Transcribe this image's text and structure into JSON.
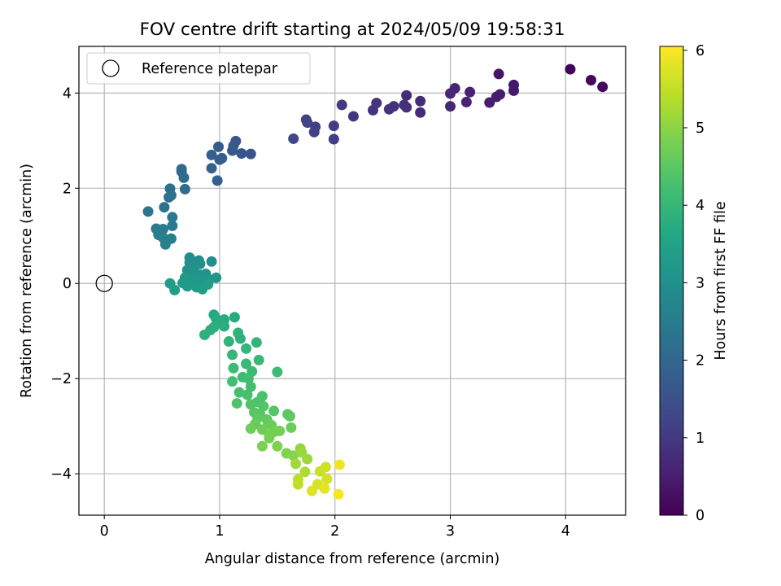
{
  "chart_data": {
    "type": "scatter",
    "title": "FOV centre drift starting at 2024/05/09 19:58:31",
    "xlabel": "Angular distance from reference (arcmin)",
    "ylabel": "Rotation from reference (arcmin)",
    "xlim": [
      -0.22,
      4.52
    ],
    "ylim": [
      -4.87,
      4.98
    ],
    "xticks": [
      0,
      1,
      2,
      3,
      4
    ],
    "yticks": [
      -4,
      -2,
      0,
      2,
      4
    ],
    "xtick_labels": [
      "0",
      "1",
      "2",
      "3",
      "4"
    ],
    "ytick_labels": [
      "−4",
      "−2",
      "0",
      "2",
      "4"
    ],
    "grid": true,
    "legend": {
      "placement": "top-left",
      "entries": [
        "Reference platepar"
      ]
    },
    "reference_point": {
      "x": 0,
      "y": 0
    },
    "colorbar": {
      "label": "Hours from first FF file",
      "range": [
        0,
        6.05
      ],
      "ticks": [
        0,
        1,
        2,
        3,
        4,
        5,
        6
      ],
      "tick_labels": [
        "0",
        "1",
        "2",
        "3",
        "4",
        "5",
        "6"
      ],
      "colormap": "viridis"
    },
    "series": [
      {
        "values": [
          {
            "x": 4.04,
            "y": 4.5,
            "c": 0.05
          },
          {
            "x": 4.22,
            "y": 4.27,
            "c": 0.1
          },
          {
            "x": 4.32,
            "y": 4.13,
            "c": 0.15
          },
          {
            "x": 3.42,
            "y": 4.4,
            "c": 0.35
          },
          {
            "x": 3.55,
            "y": 4.17,
            "c": 0.4
          },
          {
            "x": 3.55,
            "y": 4.05,
            "c": 0.42
          },
          {
            "x": 3.43,
            "y": 3.97,
            "c": 0.45
          },
          {
            "x": 3.4,
            "y": 3.92,
            "c": 0.47
          },
          {
            "x": 3.34,
            "y": 3.8,
            "c": 0.5
          },
          {
            "x": 3.17,
            "y": 4.02,
            "c": 0.55
          },
          {
            "x": 3.14,
            "y": 3.81,
            "c": 0.57
          },
          {
            "x": 3.04,
            "y": 4.1,
            "c": 0.6
          },
          {
            "x": 3.0,
            "y": 3.99,
            "c": 0.62
          },
          {
            "x": 3.0,
            "y": 3.72,
            "c": 0.65
          },
          {
            "x": 2.74,
            "y": 3.83,
            "c": 0.72
          },
          {
            "x": 2.74,
            "y": 3.59,
            "c": 0.74
          },
          {
            "x": 2.62,
            "y": 3.95,
            "c": 0.78
          },
          {
            "x": 2.62,
            "y": 3.7,
            "c": 0.8
          },
          {
            "x": 2.6,
            "y": 3.75,
            "c": 0.82
          },
          {
            "x": 2.51,
            "y": 3.72,
            "c": 0.85
          },
          {
            "x": 2.47,
            "y": 3.66,
            "c": 0.87
          },
          {
            "x": 2.36,
            "y": 3.79,
            "c": 0.9
          },
          {
            "x": 2.33,
            "y": 3.64,
            "c": 0.92
          },
          {
            "x": 2.16,
            "y": 3.51,
            "c": 0.97
          },
          {
            "x": 2.06,
            "y": 3.75,
            "c": 1.0
          },
          {
            "x": 1.99,
            "y": 3.31,
            "c": 1.05
          },
          {
            "x": 1.99,
            "y": 3.03,
            "c": 1.08
          },
          {
            "x": 1.83,
            "y": 3.29,
            "c": 1.12
          },
          {
            "x": 1.82,
            "y": 3.18,
            "c": 1.15
          },
          {
            "x": 1.75,
            "y": 3.44,
            "c": 1.18
          },
          {
            "x": 1.76,
            "y": 3.38,
            "c": 1.2
          },
          {
            "x": 1.64,
            "y": 3.04,
            "c": 1.25
          },
          {
            "x": 1.27,
            "y": 2.72,
            "c": 1.55
          },
          {
            "x": 1.19,
            "y": 2.73,
            "c": 1.6
          },
          {
            "x": 1.14,
            "y": 2.99,
            "c": 1.65
          },
          {
            "x": 1.12,
            "y": 2.89,
            "c": 1.68
          },
          {
            "x": 1.11,
            "y": 2.79,
            "c": 1.7
          },
          {
            "x": 0.99,
            "y": 2.87,
            "c": 1.75
          },
          {
            "x": 1.02,
            "y": 2.63,
            "c": 1.78
          },
          {
            "x": 1.0,
            "y": 2.6,
            "c": 1.8
          },
          {
            "x": 0.93,
            "y": 2.7,
            "c": 1.85
          },
          {
            "x": 0.93,
            "y": 2.42,
            "c": 1.88
          },
          {
            "x": 0.98,
            "y": 2.16,
            "c": 1.92
          },
          {
            "x": 0.67,
            "y": 2.4,
            "c": 2.05
          },
          {
            "x": 0.67,
            "y": 2.35,
            "c": 2.08
          },
          {
            "x": 0.69,
            "y": 2.22,
            "c": 2.1
          },
          {
            "x": 0.7,
            "y": 1.98,
            "c": 2.15
          },
          {
            "x": 0.57,
            "y": 1.99,
            "c": 2.2
          },
          {
            "x": 0.58,
            "y": 1.85,
            "c": 2.22
          },
          {
            "x": 0.56,
            "y": 1.81,
            "c": 2.25
          },
          {
            "x": 0.52,
            "y": 1.6,
            "c": 2.3
          },
          {
            "x": 0.38,
            "y": 1.51,
            "c": 2.35
          },
          {
            "x": 0.59,
            "y": 1.39,
            "c": 2.4
          },
          {
            "x": 0.59,
            "y": 1.21,
            "c": 2.45
          },
          {
            "x": 0.45,
            "y": 1.15,
            "c": 2.5
          },
          {
            "x": 0.51,
            "y": 1.14,
            "c": 2.52
          },
          {
            "x": 0.47,
            "y": 1.02,
            "c": 2.55
          },
          {
            "x": 0.51,
            "y": 0.96,
            "c": 2.58
          },
          {
            "x": 0.58,
            "y": 0.94,
            "c": 2.6
          },
          {
            "x": 0.53,
            "y": 0.82,
            "c": 2.65
          },
          {
            "x": 0.74,
            "y": 0.54,
            "c": 2.9
          },
          {
            "x": 0.74,
            "y": 0.44,
            "c": 2.92
          },
          {
            "x": 0.82,
            "y": 0.48,
            "c": 2.95
          },
          {
            "x": 0.83,
            "y": 0.41,
            "c": 2.97
          },
          {
            "x": 0.93,
            "y": 0.46,
            "c": 3.0
          },
          {
            "x": 0.79,
            "y": 0.38,
            "c": 3.02
          },
          {
            "x": 0.75,
            "y": 0.32,
            "c": 3.04
          },
          {
            "x": 0.72,
            "y": 0.28,
            "c": 3.06
          },
          {
            "x": 0.78,
            "y": 0.22,
            "c": 3.08
          },
          {
            "x": 0.83,
            "y": 0.18,
            "c": 3.1
          },
          {
            "x": 0.88,
            "y": 0.2,
            "c": 3.12
          },
          {
            "x": 0.97,
            "y": 0.12,
            "c": 3.14
          },
          {
            "x": 0.91,
            "y": 0.08,
            "c": 3.16
          },
          {
            "x": 0.86,
            "y": 0.03,
            "c": 3.18
          },
          {
            "x": 0.79,
            "y": 0.05,
            "c": 3.2
          },
          {
            "x": 0.74,
            "y": 0.08,
            "c": 3.22
          },
          {
            "x": 0.7,
            "y": 0.12,
            "c": 3.24
          },
          {
            "x": 0.68,
            "y": 0.01,
            "c": 3.26
          },
          {
            "x": 0.72,
            "y": -0.06,
            "c": 3.28
          },
          {
            "x": 0.8,
            "y": -0.08,
            "c": 3.3
          },
          {
            "x": 0.85,
            "y": -0.12,
            "c": 3.32
          },
          {
            "x": 0.9,
            "y": -0.02,
            "c": 3.34
          },
          {
            "x": 0.57,
            "y": 0.0,
            "c": 3.36
          },
          {
            "x": 0.61,
            "y": -0.14,
            "c": 3.38
          },
          {
            "x": 0.95,
            "y": -0.66,
            "c": 3.65
          },
          {
            "x": 0.97,
            "y": -0.74,
            "c": 3.68
          },
          {
            "x": 1.04,
            "y": -0.76,
            "c": 3.7
          },
          {
            "x": 1.13,
            "y": -0.71,
            "c": 3.72
          },
          {
            "x": 1.0,
            "y": -0.83,
            "c": 3.75
          },
          {
            "x": 1.04,
            "y": -0.9,
            "c": 3.77
          },
          {
            "x": 0.95,
            "y": -0.92,
            "c": 3.8
          },
          {
            "x": 0.92,
            "y": -0.98,
            "c": 3.82
          },
          {
            "x": 0.87,
            "y": -1.08,
            "c": 3.85
          },
          {
            "x": 1.16,
            "y": -1.04,
            "c": 3.88
          },
          {
            "x": 1.18,
            "y": -1.16,
            "c": 3.9
          },
          {
            "x": 1.08,
            "y": -1.22,
            "c": 3.92
          },
          {
            "x": 1.32,
            "y": -1.24,
            "c": 3.95
          },
          {
            "x": 1.23,
            "y": -1.37,
            "c": 3.97
          },
          {
            "x": 1.11,
            "y": -1.5,
            "c": 4.0
          },
          {
            "x": 1.34,
            "y": -1.61,
            "c": 4.02
          },
          {
            "x": 1.23,
            "y": -1.69,
            "c": 4.05
          },
          {
            "x": 1.12,
            "y": -1.78,
            "c": 4.07
          },
          {
            "x": 1.28,
            "y": -1.85,
            "c": 4.1
          },
          {
            "x": 1.5,
            "y": -1.86,
            "c": 4.12
          },
          {
            "x": 1.2,
            "y": -1.97,
            "c": 4.15
          },
          {
            "x": 1.25,
            "y": -2.0,
            "c": 4.17
          },
          {
            "x": 1.11,
            "y": -2.06,
            "c": 4.2
          },
          {
            "x": 1.27,
            "y": -2.17,
            "c": 4.22
          },
          {
            "x": 1.17,
            "y": -2.29,
            "c": 4.25
          },
          {
            "x": 1.24,
            "y": -2.34,
            "c": 4.27
          },
          {
            "x": 1.37,
            "y": -2.37,
            "c": 4.3
          },
          {
            "x": 1.33,
            "y": -2.49,
            "c": 4.32
          },
          {
            "x": 1.15,
            "y": -2.52,
            "c": 4.35
          },
          {
            "x": 1.27,
            "y": -2.54,
            "c": 4.37
          },
          {
            "x": 1.38,
            "y": -2.58,
            "c": 4.4
          },
          {
            "x": 1.47,
            "y": -2.68,
            "c": 4.42
          },
          {
            "x": 1.3,
            "y": -2.71,
            "c": 4.45
          },
          {
            "x": 1.35,
            "y": -2.74,
            "c": 4.47
          },
          {
            "x": 1.59,
            "y": -2.75,
            "c": 4.5
          },
          {
            "x": 1.61,
            "y": -2.79,
            "c": 4.52
          },
          {
            "x": 1.33,
            "y": -2.83,
            "c": 4.55
          },
          {
            "x": 1.41,
            "y": -2.86,
            "c": 4.57
          },
          {
            "x": 1.42,
            "y": -2.92,
            "c": 4.6
          },
          {
            "x": 1.31,
            "y": -2.95,
            "c": 4.62
          },
          {
            "x": 1.45,
            "y": -2.98,
            "c": 4.65
          },
          {
            "x": 1.62,
            "y": -3.03,
            "c": 4.67
          },
          {
            "x": 1.27,
            "y": -3.05,
            "c": 4.7
          },
          {
            "x": 1.37,
            "y": -3.07,
            "c": 4.72
          },
          {
            "x": 1.47,
            "y": -3.12,
            "c": 4.75
          },
          {
            "x": 1.52,
            "y": -3.1,
            "c": 4.77
          },
          {
            "x": 1.43,
            "y": -3.18,
            "c": 4.8
          },
          {
            "x": 1.43,
            "y": -3.25,
            "c": 4.82
          },
          {
            "x": 1.37,
            "y": -3.42,
            "c": 4.85
          },
          {
            "x": 1.5,
            "y": -3.42,
            "c": 4.87
          },
          {
            "x": 1.58,
            "y": -3.57,
            "c": 4.9
          },
          {
            "x": 1.64,
            "y": -3.62,
            "c": 4.95
          },
          {
            "x": 1.7,
            "y": -3.47,
            "c": 5.05
          },
          {
            "x": 1.71,
            "y": -3.55,
            "c": 5.1
          },
          {
            "x": 1.76,
            "y": -3.69,
            "c": 5.15
          },
          {
            "x": 1.66,
            "y": -3.79,
            "c": 5.2
          },
          {
            "x": 1.74,
            "y": -3.96,
            "c": 5.3
          },
          {
            "x": 1.68,
            "y": -4.12,
            "c": 5.4
          },
          {
            "x": 1.68,
            "y": -4.22,
            "c": 5.45
          },
          {
            "x": 1.87,
            "y": -3.95,
            "c": 5.55
          },
          {
            "x": 1.92,
            "y": -3.86,
            "c": 5.6
          },
          {
            "x": 1.93,
            "y": -4.11,
            "c": 5.65
          },
          {
            "x": 1.85,
            "y": -4.22,
            "c": 5.7
          },
          {
            "x": 1.8,
            "y": -4.36,
            "c": 5.75
          },
          {
            "x": 1.91,
            "y": -4.31,
            "c": 5.8
          },
          {
            "x": 2.04,
            "y": -3.81,
            "c": 5.9
          },
          {
            "x": 2.03,
            "y": -4.43,
            "c": 6.0
          }
        ]
      }
    ]
  }
}
